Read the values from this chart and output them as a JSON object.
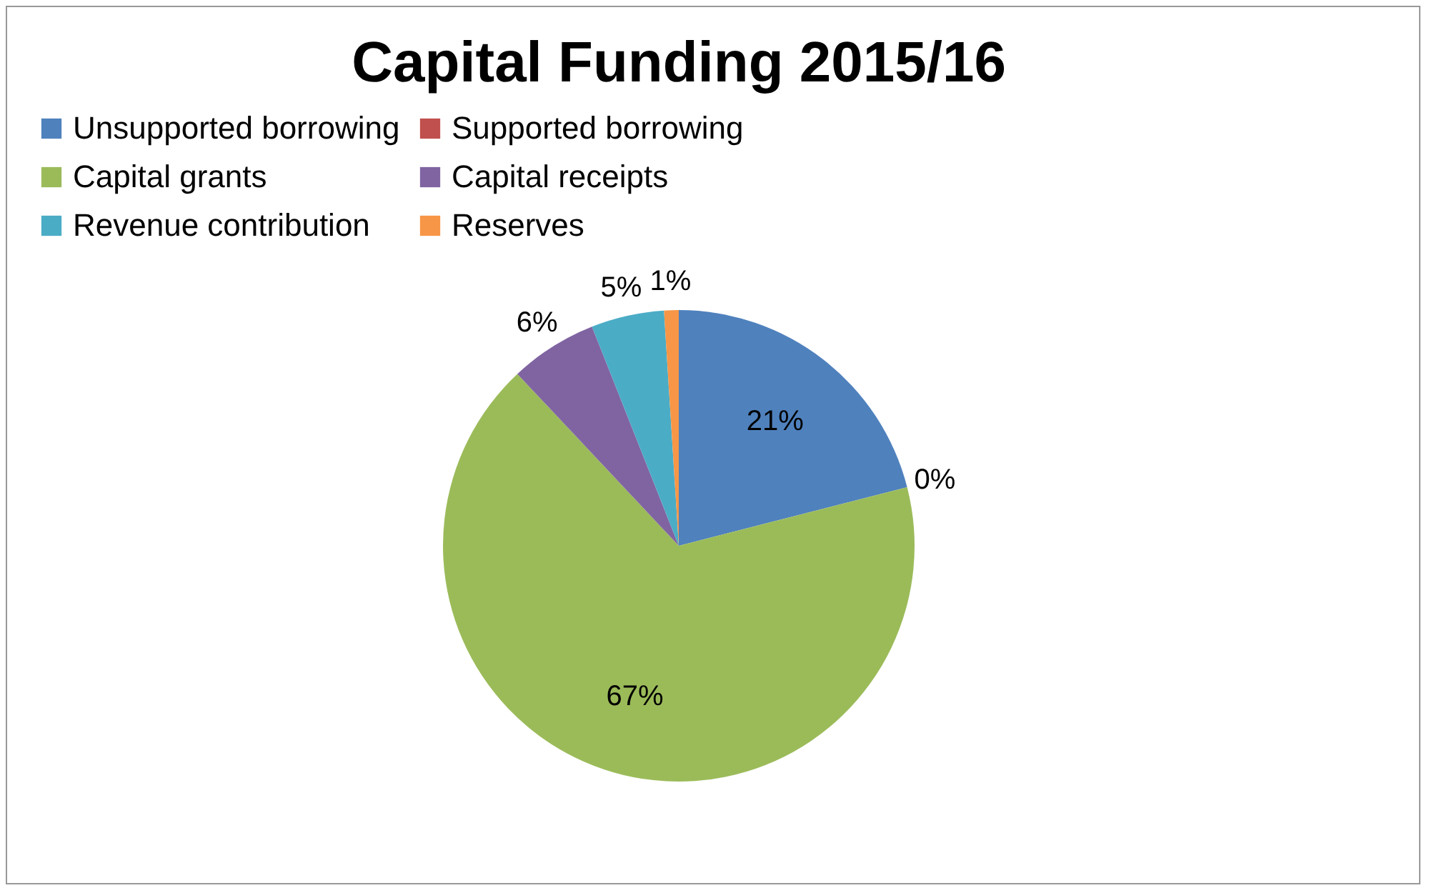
{
  "chart_data": {
    "type": "pie",
    "title": "Capital Funding 2015/16",
    "categories": [
      "Unsupported borrowing",
      "Supported borrowing",
      "Capital grants",
      "Capital receipts",
      "Revenue contribution",
      "Reserves"
    ],
    "values": [
      21,
      0,
      67,
      6,
      5,
      1
    ],
    "value_labels": [
      "21%",
      "0%",
      "67%",
      "6%",
      "5%",
      "1%"
    ],
    "colors": [
      "#4f81bd",
      "#c0504d",
      "#9bbb59",
      "#8064a2",
      "#4bacc6",
      "#f79646"
    ],
    "legend": "top"
  }
}
